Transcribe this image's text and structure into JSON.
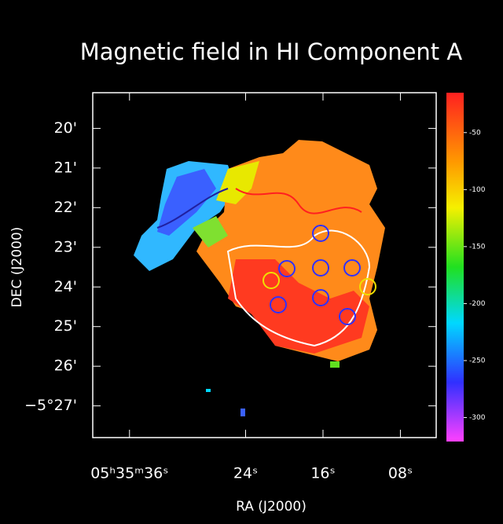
{
  "chart_data": {
    "type": "map",
    "title": "Magnetic field in HI Component A",
    "xlabel": "RA (J2000)",
    "ylabel": "DEC (J2000)",
    "xlim": [
      39.8,
      4.3
    ],
    "xticks": [
      {
        "value": 36,
        "label": "05ʰ35ᵐ36ˢ"
      },
      {
        "value": 24,
        "label": "24ˢ"
      },
      {
        "value": 16,
        "label": "16ˢ"
      },
      {
        "value": 8,
        "label": "08ˢ"
      }
    ],
    "ylim": [
      19.1,
      27.8
    ],
    "yticks": [
      {
        "value": 20,
        "label": "20'"
      },
      {
        "value": 21,
        "label": "21'"
      },
      {
        "value": 22,
        "label": "22'"
      },
      {
        "value": 23,
        "label": "23'"
      },
      {
        "value": 24,
        "label": "24'"
      },
      {
        "value": 25,
        "label": "25'"
      },
      {
        "value": 26,
        "label": "26'"
      },
      {
        "value": 27,
        "label": "−5°27'"
      }
    ],
    "colorbar": {
      "lim": [
        -15,
        -321
      ],
      "ticks": [
        -50,
        -100,
        -150,
        -200,
        -250,
        -300
      ]
    }
  }
}
